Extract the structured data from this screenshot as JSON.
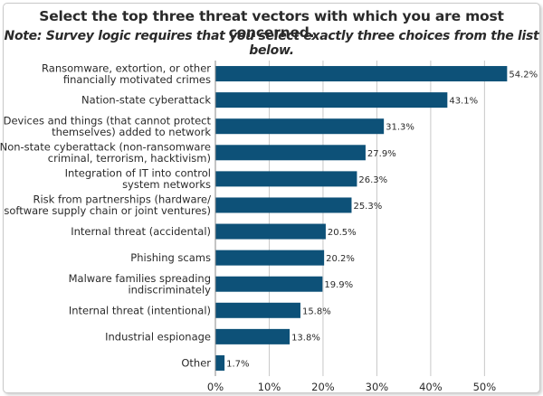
{
  "chart_data": {
    "type": "bar",
    "orientation": "horizontal",
    "title": "Select the top three threat vectors with which you are most concerned.",
    "subtitle": "Note: Survey logic requires that you select exactly three choices from the list below.",
    "categories": [
      [
        "Ransomware, extortion, or other",
        "financially motivated crimes"
      ],
      [
        "Nation-state cyberattack"
      ],
      [
        "Devices and things (that cannot protect",
        "themselves) added to network"
      ],
      [
        "Non-state cyberattack (non-ransomware",
        "criminal, terrorism, hacktivism)"
      ],
      [
        "Integration of IT into control",
        "system networks"
      ],
      [
        "Risk from partnerships (hardware/",
        "software supply chain or joint ventures)"
      ],
      [
        "Internal threat (accidental)"
      ],
      [
        "Phishing scams"
      ],
      [
        "Malware families spreading",
        "indiscriminately"
      ],
      [
        "Internal threat (intentional)"
      ],
      [
        "Industrial espionage"
      ],
      [
        "Other"
      ]
    ],
    "values": [
      54.2,
      43.1,
      31.3,
      27.9,
      26.3,
      25.3,
      20.5,
      20.2,
      19.9,
      15.8,
      13.8,
      1.7
    ],
    "value_labels": [
      "54.2%",
      "43.1%",
      "31.3%",
      "27.9%",
      "26.3%",
      "25.3%",
      "20.5%",
      "20.2%",
      "19.9%",
      "15.8%",
      "13.8%",
      "1.7%"
    ],
    "xlim": [
      0,
      57
    ],
    "xticks": [
      0,
      10,
      20,
      30,
      40,
      50
    ],
    "xtick_labels": [
      "0%",
      "10%",
      "20%",
      "30%",
      "40%",
      "50%"
    ],
    "grid": true,
    "bar_color": "#0d5178",
    "grid_color": "#c8c8c8"
  }
}
